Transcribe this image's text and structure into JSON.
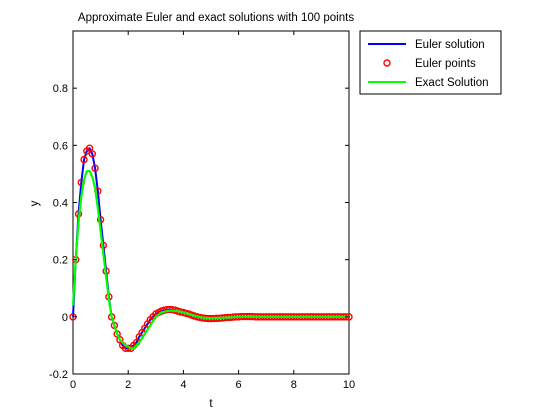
{
  "chart_data": {
    "type": "line",
    "title": "Approximate Euler and exact solutions with 100 points",
    "xlabel": "t",
    "ylabel": "y",
    "xlim": [
      0,
      10
    ],
    "ylim": [
      -0.2,
      1.0
    ],
    "xticks": [
      0,
      2,
      4,
      6,
      8,
      10
    ],
    "yticks": [
      -0.2,
      0,
      0.2,
      0.4,
      0.6,
      0.8
    ],
    "grid": false,
    "legend_position": "outside-top-right",
    "series": [
      {
        "name": "Euler solution",
        "style": "line",
        "color": "#0000ff",
        "x": [
          0,
          0.1,
          0.2,
          0.3,
          0.4,
          0.5,
          0.6,
          0.7,
          0.8,
          0.9,
          1.0,
          1.1,
          1.2,
          1.3,
          1.4,
          1.5,
          1.6,
          1.7,
          1.8,
          1.9,
          2.0,
          2.1,
          2.2,
          2.3,
          2.4,
          2.6,
          2.8,
          3.0,
          3.2,
          3.4,
          3.6,
          3.8,
          4.0,
          4.2,
          4.4,
          4.6,
          4.8,
          5.0,
          5.5,
          6.0,
          6.5,
          7.0,
          7.5,
          8.0,
          9.0,
          10.0
        ],
        "y": [
          0,
          0.2,
          0.36,
          0.47,
          0.55,
          0.58,
          0.59,
          0.57,
          0.52,
          0.44,
          0.34,
          0.25,
          0.16,
          0.07,
          0.0,
          -0.03,
          -0.06,
          -0.08,
          -0.1,
          -0.11,
          -0.11,
          -0.11,
          -0.1,
          -0.09,
          -0.07,
          -0.04,
          -0.01,
          0.01,
          0.02,
          0.025,
          0.025,
          0.02,
          0.015,
          0.01,
          0.003,
          -0.002,
          -0.005,
          -0.006,
          -0.003,
          0.0,
          0.001,
          0.0,
          0.0,
          0.0,
          0.0,
          0.0
        ]
      },
      {
        "name": "Euler points",
        "style": "markers",
        "color": "#ff0000",
        "x": [
          0,
          0.1,
          0.2,
          0.3,
          0.4,
          0.5,
          0.6,
          0.7,
          0.8,
          0.9,
          1.0,
          1.1,
          1.2,
          1.3,
          1.4,
          1.5,
          1.6,
          1.7,
          1.8,
          1.9,
          2.0,
          2.1,
          2.2,
          2.3,
          2.4,
          2.5,
          2.6,
          2.7,
          2.8,
          2.9,
          3.0,
          3.1,
          3.2,
          3.3,
          3.4,
          3.5,
          3.6,
          3.7,
          3.8,
          3.9,
          4.0,
          4.1,
          4.2,
          4.3,
          4.4,
          4.5,
          4.6,
          4.7,
          4.8,
          4.9,
          5.0,
          5.1,
          5.2,
          5.3,
          5.4,
          5.5,
          5.6,
          5.7,
          5.8,
          5.9,
          6.0,
          6.1,
          6.2,
          6.3,
          6.4,
          6.5,
          6.6,
          6.7,
          6.8,
          6.9,
          7.0,
          7.1,
          7.2,
          7.3,
          7.4,
          7.5,
          7.6,
          7.7,
          7.8,
          7.9,
          8.0,
          8.1,
          8.2,
          8.3,
          8.4,
          8.5,
          8.6,
          8.7,
          8.8,
          8.9,
          9.0,
          9.1,
          9.2,
          9.3,
          9.4,
          9.5,
          9.6,
          9.7,
          9.8,
          9.9,
          10.0
        ],
        "y": [
          0,
          0.2,
          0.36,
          0.47,
          0.55,
          0.58,
          0.59,
          0.57,
          0.52,
          0.44,
          0.34,
          0.25,
          0.16,
          0.07,
          0.0,
          -0.03,
          -0.06,
          -0.08,
          -0.1,
          -0.11,
          -0.11,
          -0.11,
          -0.1,
          -0.09,
          -0.07,
          -0.055,
          -0.04,
          -0.025,
          -0.01,
          0.0,
          0.01,
          0.015,
          0.02,
          0.023,
          0.025,
          0.026,
          0.025,
          0.023,
          0.02,
          0.017,
          0.015,
          0.012,
          0.01,
          0.006,
          0.003,
          0.0,
          -0.002,
          -0.004,
          -0.005,
          -0.006,
          -0.006,
          -0.006,
          -0.005,
          -0.005,
          -0.004,
          -0.003,
          -0.002,
          -0.002,
          -0.001,
          0.0,
          0.0,
          0.001,
          0.001,
          0.001,
          0.001,
          0.001,
          0.0,
          0.0,
          0.0,
          0.0,
          0.0,
          0.0,
          0.0,
          0.0,
          0.0,
          0.0,
          0.0,
          0.0,
          0.0,
          0.0,
          0.0,
          0.0,
          0.0,
          0.0,
          0.0,
          0.0,
          0.0,
          0.0,
          0.0,
          0.0,
          0.0,
          0.0,
          0.0,
          0.0,
          0.0,
          0.0,
          0.0,
          0.0,
          0.0,
          0.0,
          0.0
        ]
      },
      {
        "name": "Exact Solution",
        "style": "line",
        "color": "#00ff00",
        "x": [
          0,
          0.1,
          0.2,
          0.3,
          0.4,
          0.5,
          0.6,
          0.7,
          0.8,
          0.9,
          1.0,
          1.1,
          1.2,
          1.3,
          1.4,
          1.5,
          1.6,
          1.7,
          1.8,
          1.9,
          2.0,
          2.1,
          2.2,
          2.3,
          2.4,
          2.6,
          2.8,
          3.0,
          3.2,
          3.4,
          3.6,
          3.8,
          4.0,
          4.2,
          4.4,
          4.6,
          4.8,
          5.0,
          5.5,
          6.0,
          6.5,
          7.0,
          7.5,
          8.0,
          9.0,
          10.0
        ],
        "y": [
          0.04,
          0.2,
          0.33,
          0.42,
          0.48,
          0.51,
          0.51,
          0.49,
          0.45,
          0.38,
          0.3,
          0.22,
          0.14,
          0.06,
          0.0,
          -0.03,
          -0.06,
          -0.08,
          -0.09,
          -0.1,
          -0.105,
          -0.11,
          -0.11,
          -0.1,
          -0.09,
          -0.06,
          -0.03,
          0.0,
          0.015,
          0.02,
          0.022,
          0.02,
          0.015,
          0.01,
          0.004,
          -0.001,
          -0.004,
          -0.005,
          -0.003,
          0.0,
          0.001,
          0.0,
          0.0,
          0.0,
          0.0,
          0.0
        ]
      }
    ]
  }
}
